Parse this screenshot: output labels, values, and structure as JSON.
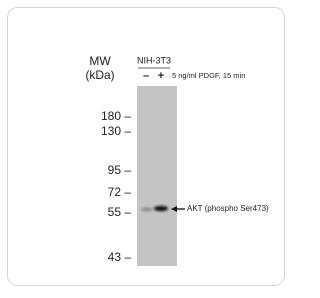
{
  "figure": {
    "mw_label": "MW",
    "unit_label": "(kDa)",
    "cell_line": "NIH-3T3",
    "lanes": [
      "–",
      "+"
    ],
    "treatment": "5 ng/ml PDGF, 15 min",
    "markers": [
      "180 –",
      "130 –",
      "95 –",
      "72 –",
      "55 –",
      "43 –"
    ],
    "band_label": "AKT (phospho Ser473)"
  }
}
